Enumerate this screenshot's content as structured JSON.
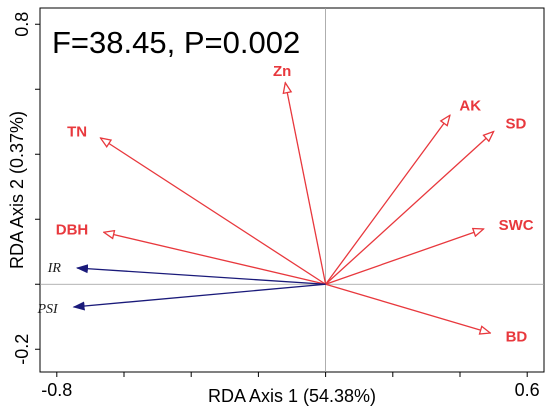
{
  "chart_data": {
    "type": "biplot",
    "title": "F=38.45, P=0.002",
    "xlabel": "RDA Axis 1 (54.38%)",
    "ylabel": "RDA Axis 2 (0.37%)",
    "xlim": [
      -0.85,
      0.65
    ],
    "ylim": [
      -0.27,
      0.85
    ],
    "x_ticks": [
      "-0.8",
      "0.6"
    ],
    "x_tick_values": [
      -0.8,
      0.6
    ],
    "y_ticks": [
      "-0.2",
      "0.8"
    ],
    "y_tick_values": [
      -0.2,
      0.8
    ],
    "colors": {
      "env": "#e8383d",
      "species": "#1a1a7a"
    },
    "environment_vectors": [
      {
        "label": "Zn",
        "x": -0.12,
        "y": 0.62
      },
      {
        "label": "TN",
        "x": -0.67,
        "y": 0.45
      },
      {
        "label": "AK",
        "x": 0.37,
        "y": 0.52
      },
      {
        "label": "SD",
        "x": 0.5,
        "y": 0.47
      },
      {
        "label": "DBH",
        "x": -0.66,
        "y": 0.16
      },
      {
        "label": "SWC",
        "x": 0.47,
        "y": 0.17
      },
      {
        "label": "BD",
        "x": 0.49,
        "y": -0.15
      }
    ],
    "species_vectors": [
      {
        "label": "IR",
        "x": -0.74,
        "y": 0.05
      },
      {
        "label": "PSI",
        "x": -0.75,
        "y": -0.07
      }
    ]
  }
}
